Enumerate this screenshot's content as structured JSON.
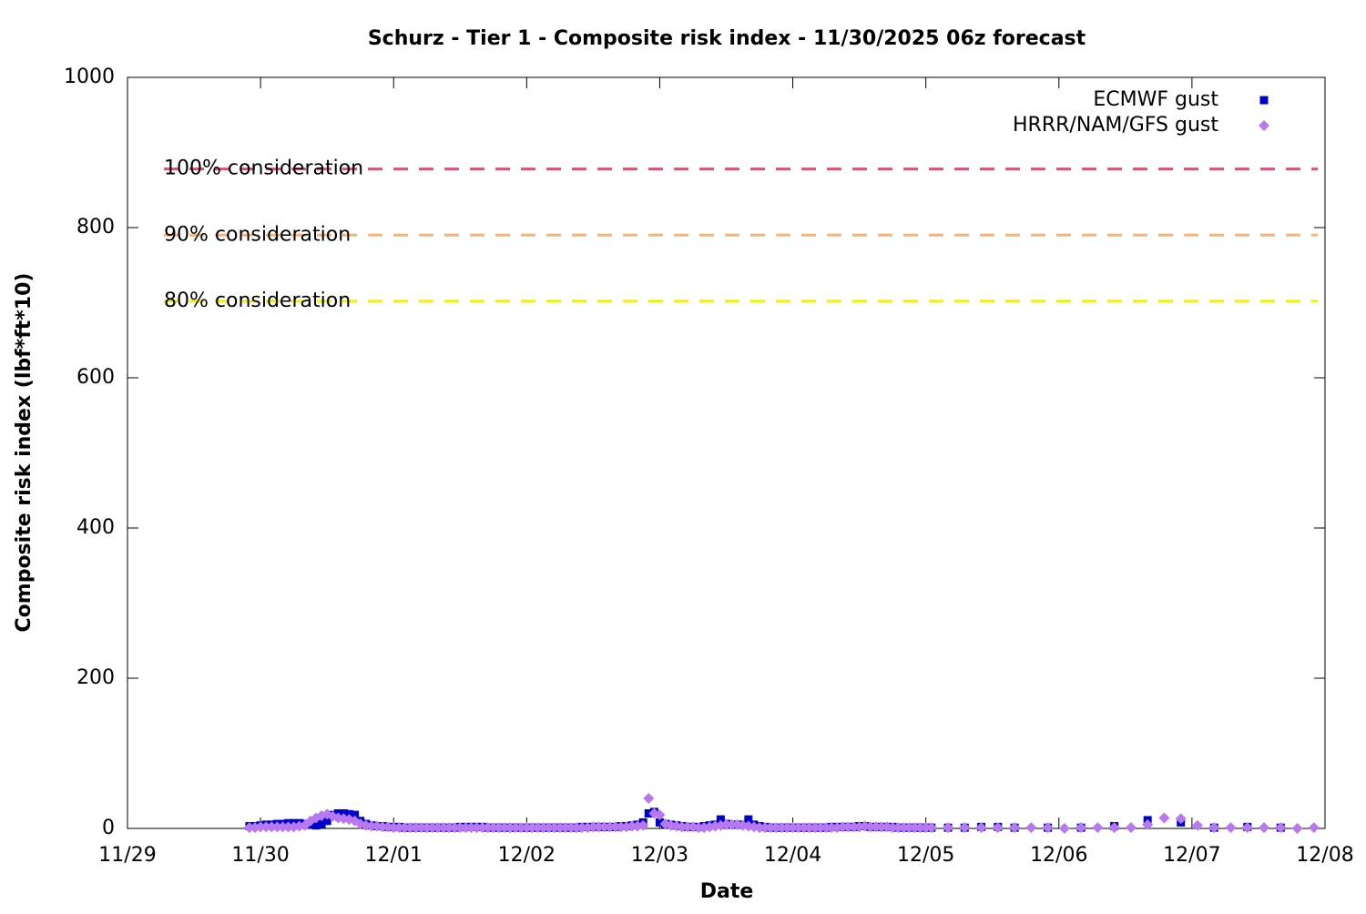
{
  "chart_data": {
    "type": "scatter",
    "title": "Schurz - Tier 1 - Composite risk index - 11/30/2025 06z forecast",
    "xlabel": "Date",
    "ylabel": "Composite risk index (lbf*ft*10)",
    "xlim": [
      0,
      216
    ],
    "xticks": [
      {
        "value": 0,
        "label": "11/29"
      },
      {
        "value": 24,
        "label": "11/30"
      },
      {
        "value": 48,
        "label": "12/01"
      },
      {
        "value": 72,
        "label": "12/02"
      },
      {
        "value": 96,
        "label": "12/03"
      },
      {
        "value": 120,
        "label": "12/04"
      },
      {
        "value": 144,
        "label": "12/05"
      },
      {
        "value": 168,
        "label": "12/06"
      },
      {
        "value": 192,
        "label": "12/07"
      },
      {
        "value": 216,
        "label": "12/08"
      }
    ],
    "ylim": [
      0,
      1000
    ],
    "yticks": [
      0,
      200,
      400,
      600,
      800,
      1000
    ],
    "legend": "top-right",
    "thresholds": [
      {
        "label": "100% consideration",
        "value": 878,
        "color": "#e0506e"
      },
      {
        "label": "90% consideration",
        "value": 790,
        "color": "#f8b478"
      },
      {
        "label": "80% consideration",
        "value": 702,
        "color": "#f0f000"
      }
    ],
    "x": [
      22,
      23,
      24,
      25,
      26,
      27,
      28,
      29,
      30,
      31,
      32,
      33,
      34,
      35,
      36,
      37,
      38,
      39,
      40,
      41,
      42,
      43,
      44,
      45,
      46,
      47,
      48,
      49,
      50,
      51,
      52,
      53,
      54,
      55,
      56,
      57,
      58,
      59,
      60,
      61,
      62,
      63,
      64,
      65,
      66,
      67,
      68,
      69,
      70,
      71,
      72,
      73,
      74,
      75,
      76,
      77,
      78,
      79,
      80,
      81,
      82,
      83,
      84,
      85,
      86,
      87,
      88,
      89,
      90,
      91,
      92,
      93,
      94,
      95,
      96,
      97,
      98,
      99,
      100,
      101,
      102,
      103,
      104,
      105,
      106,
      107,
      108,
      109,
      110,
      111,
      112,
      113,
      114,
      115,
      116,
      117,
      118,
      119,
      120,
      121,
      122,
      123,
      124,
      125,
      126,
      127,
      128,
      129,
      130,
      131,
      132,
      133,
      134,
      135,
      136,
      137,
      138,
      139,
      140,
      141,
      142,
      143,
      144,
      145,
      148,
      151,
      154,
      157,
      160,
      163,
      166,
      169,
      172,
      175,
      178,
      181,
      184,
      187,
      190,
      193,
      196,
      199,
      202,
      205,
      208,
      211,
      214
    ],
    "series": [
      {
        "name": "ECMWF gust",
        "color": "#0000cc",
        "marker": "square",
        "values": [
          3,
          3,
          4,
          5,
          5,
          6,
          6,
          7,
          7,
          7,
          6,
          5,
          4,
          6,
          10,
          18,
          20,
          20,
          19,
          18,
          10,
          6,
          4,
          3,
          3,
          2,
          2,
          2,
          1,
          1,
          1,
          1,
          1,
          1,
          1,
          1,
          1,
          1,
          2,
          2,
          2,
          2,
          2,
          1,
          1,
          1,
          1,
          1,
          1,
          1,
          1,
          1,
          1,
          1,
          1,
          1,
          1,
          1,
          1,
          1,
          2,
          2,
          2,
          2,
          2,
          2,
          2,
          3,
          3,
          4,
          5,
          8,
          20,
          22,
          8,
          6,
          5,
          4,
          3,
          2,
          2,
          2,
          3,
          4,
          5,
          12,
          6,
          5,
          5,
          5,
          12,
          5,
          3,
          2,
          1,
          1,
          1,
          1,
          1,
          1,
          1,
          1,
          1,
          1,
          1,
          2,
          2,
          2,
          2,
          2,
          3,
          3,
          2,
          2,
          2,
          2,
          2,
          1,
          1,
          1,
          1,
          1,
          1,
          1,
          1,
          1,
          2,
          2,
          1,
          null,
          1,
          null,
          1,
          null,
          3,
          null,
          11,
          null,
          8,
          null,
          1,
          null,
          2,
          null,
          1,
          null,
          null
        ]
      },
      {
        "name": "HRRR/NAM/GFS gust",
        "color": "#b878f0",
        "marker": "diamond",
        "values": [
          1,
          1,
          2,
          2,
          2,
          2,
          2,
          2,
          2,
          3,
          4,
          10,
          14,
          17,
          19,
          16,
          14,
          13,
          12,
          10,
          6,
          4,
          3,
          3,
          2,
          2,
          1,
          1,
          1,
          1,
          1,
          1,
          1,
          1,
          1,
          1,
          1,
          1,
          1,
          1,
          1,
          1,
          1,
          1,
          1,
          1,
          1,
          1,
          1,
          1,
          1,
          1,
          1,
          1,
          1,
          1,
          1,
          1,
          1,
          1,
          1,
          1,
          2,
          2,
          2,
          2,
          2,
          2,
          2,
          3,
          3,
          4,
          40,
          20,
          18,
          6,
          4,
          3,
          2,
          2,
          2,
          1,
          1,
          2,
          3,
          4,
          5,
          5,
          5,
          4,
          3,
          2,
          1,
          1,
          1,
          1,
          1,
          1,
          1,
          1,
          1,
          1,
          1,
          1,
          1,
          1,
          1,
          2,
          2,
          2,
          2,
          3,
          2,
          2,
          2,
          2,
          1,
          1,
          1,
          1,
          1,
          1,
          1,
          1,
          1,
          1,
          1,
          1,
          1,
          1,
          1,
          0,
          1,
          1,
          1,
          1,
          5,
          14,
          13,
          4,
          1,
          1,
          1,
          1,
          1,
          0,
          1
        ]
      }
    ]
  }
}
